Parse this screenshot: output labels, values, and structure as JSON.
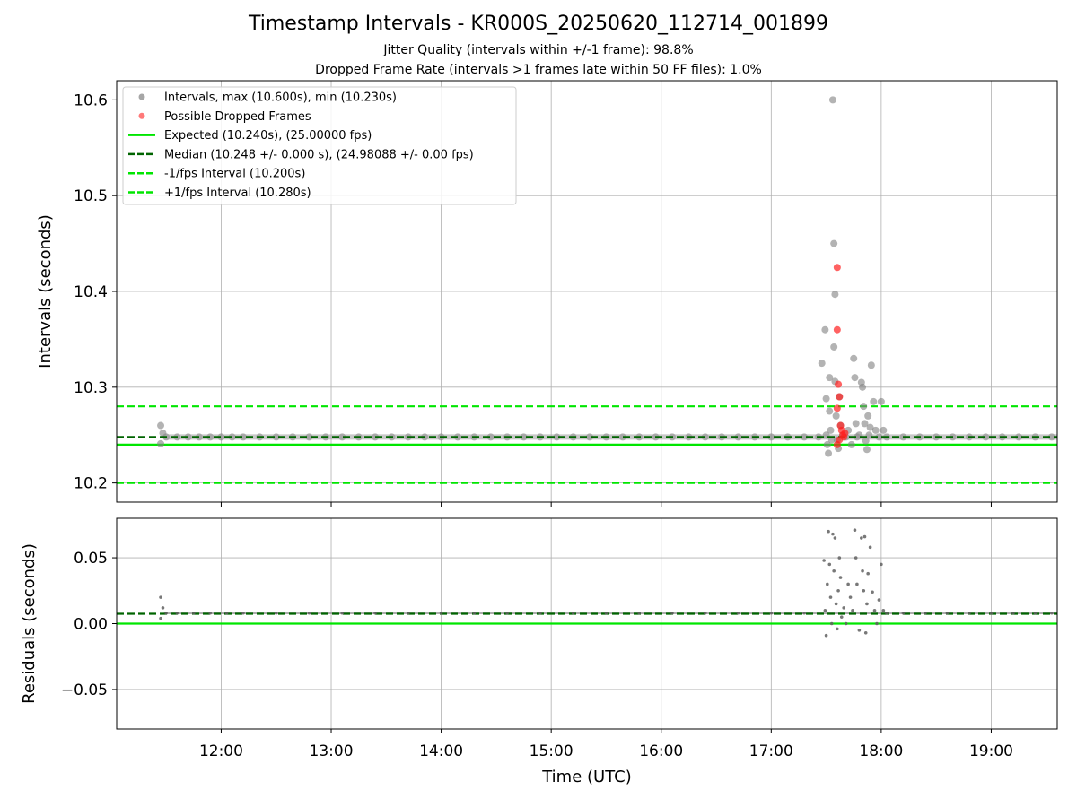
{
  "chart_data": {
    "type": "scatter",
    "title": "Timestamp Intervals - KR000S_20250620_112714_001899",
    "subtitles": [
      "Jitter Quality (intervals within +/-1 frame): 98.8%",
      "Dropped Frame Rate (intervals >1 frames late within 50 FF files): 1.0%"
    ],
    "xlabel": "Time (UTC)",
    "x_ticks": [
      "12:00",
      "13:00",
      "14:00",
      "15:00",
      "16:00",
      "17:00",
      "18:00",
      "19:00"
    ],
    "x_tick_hours": [
      12,
      13,
      14,
      15,
      16,
      17,
      18,
      19
    ],
    "xlim_hours": [
      11.05,
      19.6
    ],
    "grid": true,
    "top_panel": {
      "ylabel": "Intervals (seconds)",
      "ylim": [
        10.18,
        10.62
      ],
      "y_ticks": [
        "10.2",
        "10.3",
        "10.4",
        "10.5",
        "10.6"
      ],
      "y_tick_values": [
        10.2,
        10.3,
        10.4,
        10.5,
        10.6
      ],
      "legend_position": "top-left",
      "legend": [
        {
          "label": "Intervals, max (10.600s), min (10.230s)",
          "kind": "marker",
          "color": "#808080"
        },
        {
          "label": "Possible Dropped Frames",
          "kind": "marker",
          "color": "#ff4040"
        },
        {
          "label": "Expected (10.240s), (25.00000 fps)",
          "kind": "solid",
          "color": "#00e600"
        },
        {
          "label": "Median (10.248 +/- 0.000 s), (24.98088 +/- 0.00 fps)",
          "kind": "dashed",
          "color": "#006400"
        },
        {
          "label": "-1/fps Interval (10.200s)",
          "kind": "dashed",
          "color": "#00e600"
        },
        {
          "label": "+1/fps Interval (10.280s)",
          "kind": "dashed",
          "color": "#00e600"
        }
      ],
      "reference_lines": {
        "expected": 10.24,
        "median": 10.248,
        "minus_fps": 10.2,
        "plus_fps": 10.28
      },
      "intervals": [
        [
          11.45,
          10.26
        ],
        [
          11.45,
          10.241
        ],
        [
          11.47,
          10.252
        ],
        [
          11.5,
          10.248
        ],
        [
          11.6,
          10.248
        ],
        [
          11.7,
          10.248
        ],
        [
          11.8,
          10.248
        ],
        [
          11.9,
          10.248
        ],
        [
          12.0,
          10.248
        ],
        [
          12.1,
          10.248
        ],
        [
          12.2,
          10.248
        ],
        [
          12.35,
          10.248
        ],
        [
          12.5,
          10.248
        ],
        [
          12.65,
          10.248
        ],
        [
          12.8,
          10.248
        ],
        [
          12.95,
          10.248
        ],
        [
          13.1,
          10.248
        ],
        [
          13.25,
          10.248
        ],
        [
          13.4,
          10.248
        ],
        [
          13.55,
          10.248
        ],
        [
          13.7,
          10.248
        ],
        [
          13.85,
          10.248
        ],
        [
          14.0,
          10.248
        ],
        [
          14.15,
          10.248
        ],
        [
          14.3,
          10.248
        ],
        [
          14.45,
          10.248
        ],
        [
          14.6,
          10.248
        ],
        [
          14.75,
          10.248
        ],
        [
          14.9,
          10.248
        ],
        [
          15.05,
          10.248
        ],
        [
          15.2,
          10.248
        ],
        [
          15.35,
          10.248
        ],
        [
          15.5,
          10.248
        ],
        [
          15.65,
          10.248
        ],
        [
          15.8,
          10.248
        ],
        [
          15.95,
          10.248
        ],
        [
          16.1,
          10.248
        ],
        [
          16.25,
          10.248
        ],
        [
          16.4,
          10.248
        ],
        [
          16.55,
          10.248
        ],
        [
          16.7,
          10.248
        ],
        [
          16.85,
          10.248
        ],
        [
          17.0,
          10.248
        ],
        [
          17.15,
          10.248
        ],
        [
          17.3,
          10.248
        ],
        [
          17.43,
          10.248
        ],
        [
          17.46,
          10.325
        ],
        [
          17.49,
          10.36
        ],
        [
          17.5,
          10.288
        ],
        [
          17.5,
          10.25
        ],
        [
          17.51,
          10.24
        ],
        [
          17.52,
          10.231
        ],
        [
          17.53,
          10.31
        ],
        [
          17.53,
          10.275
        ],
        [
          17.54,
          10.255
        ],
        [
          17.55,
          10.245
        ],
        [
          17.56,
          10.6
        ],
        [
          17.57,
          10.45
        ],
        [
          17.57,
          10.342
        ],
        [
          17.58,
          10.397
        ],
        [
          17.58,
          10.306
        ],
        [
          17.59,
          10.27
        ],
        [
          17.6,
          10.245
        ],
        [
          17.61,
          10.236
        ],
        [
          17.62,
          10.29
        ],
        [
          17.63,
          10.26
        ],
        [
          17.65,
          10.25
        ],
        [
          17.68,
          10.248
        ],
        [
          17.7,
          10.255
        ],
        [
          17.73,
          10.24
        ],
        [
          17.75,
          10.33
        ],
        [
          17.76,
          10.31
        ],
        [
          17.77,
          10.262
        ],
        [
          17.78,
          10.248
        ],
        [
          17.8,
          10.25
        ],
        [
          17.82,
          10.305
        ],
        [
          17.83,
          10.3
        ],
        [
          17.84,
          10.28
        ],
        [
          17.85,
          10.262
        ],
        [
          17.86,
          10.244
        ],
        [
          17.87,
          10.235
        ],
        [
          17.88,
          10.27
        ],
        [
          17.89,
          10.25
        ],
        [
          17.9,
          10.258
        ],
        [
          17.91,
          10.323
        ],
        [
          17.93,
          10.285
        ],
        [
          17.95,
          10.255
        ],
        [
          17.98,
          10.248
        ],
        [
          18.0,
          10.285
        ],
        [
          18.02,
          10.255
        ],
        [
          18.05,
          10.248
        ],
        [
          18.2,
          10.248
        ],
        [
          18.35,
          10.248
        ],
        [
          18.5,
          10.248
        ],
        [
          18.65,
          10.248
        ],
        [
          18.8,
          10.248
        ],
        [
          18.95,
          10.248
        ],
        [
          19.1,
          10.248
        ],
        [
          19.25,
          10.248
        ],
        [
          19.4,
          10.248
        ],
        [
          19.55,
          10.248
        ]
      ],
      "dropped": [
        [
          17.6,
          10.425
        ],
        [
          17.6,
          10.36
        ],
        [
          17.61,
          10.303
        ],
        [
          17.62,
          10.29
        ],
        [
          17.6,
          10.278
        ],
        [
          17.63,
          10.26
        ],
        [
          17.64,
          10.255
        ],
        [
          17.65,
          10.25
        ],
        [
          17.62,
          10.245
        ],
        [
          17.6,
          10.24
        ],
        [
          17.66,
          10.248
        ],
        [
          17.67,
          10.252
        ]
      ]
    },
    "bottom_panel": {
      "ylabel": "Residuals (seconds)",
      "ylim": [
        -0.08,
        0.08
      ],
      "y_ticks": [
        "0.05",
        "0.00",
        "−0.05"
      ],
      "y_tick_values": [
        0.05,
        0.0,
        -0.05
      ],
      "reference_lines": {
        "zero": 0.0,
        "median_offset": 0.0075
      },
      "residuals": [
        [
          11.45,
          0.02
        ],
        [
          11.45,
          0.004
        ],
        [
          11.47,
          0.012
        ],
        [
          11.5,
          0.008
        ],
        [
          11.6,
          0.008
        ],
        [
          11.75,
          0.008
        ],
        [
          11.9,
          0.008
        ],
        [
          12.05,
          0.008
        ],
        [
          12.2,
          0.008
        ],
        [
          12.5,
          0.008
        ],
        [
          12.8,
          0.008
        ],
        [
          13.1,
          0.008
        ],
        [
          13.4,
          0.008
        ],
        [
          13.7,
          0.008
        ],
        [
          14.0,
          0.008
        ],
        [
          14.3,
          0.008
        ],
        [
          14.6,
          0.008
        ],
        [
          14.9,
          0.008
        ],
        [
          15.2,
          0.008
        ],
        [
          15.5,
          0.008
        ],
        [
          15.8,
          0.008
        ],
        [
          16.1,
          0.008
        ],
        [
          16.4,
          0.008
        ],
        [
          16.7,
          0.008
        ],
        [
          17.0,
          0.008
        ],
        [
          17.3,
          0.008
        ],
        [
          17.48,
          0.048
        ],
        [
          17.49,
          0.01
        ],
        [
          17.5,
          -0.009
        ],
        [
          17.51,
          0.03
        ],
        [
          17.52,
          0.07
        ],
        [
          17.53,
          0.045
        ],
        [
          17.54,
          0.02
        ],
        [
          17.55,
          0.0
        ],
        [
          17.56,
          0.068
        ],
        [
          17.57,
          0.04
        ],
        [
          17.58,
          0.065
        ],
        [
          17.59,
          0.015
        ],
        [
          17.6,
          -0.004
        ],
        [
          17.61,
          0.025
        ],
        [
          17.62,
          0.05
        ],
        [
          17.63,
          0.035
        ],
        [
          17.64,
          0.005
        ],
        [
          17.66,
          0.012
        ],
        [
          17.68,
          0.0
        ],
        [
          17.7,
          0.03
        ],
        [
          17.72,
          0.02
        ],
        [
          17.74,
          0.01
        ],
        [
          17.76,
          0.071
        ],
        [
          17.77,
          0.05
        ],
        [
          17.78,
          0.03
        ],
        [
          17.8,
          -0.005
        ],
        [
          17.82,
          0.065
        ],
        [
          17.83,
          0.04
        ],
        [
          17.84,
          0.025
        ],
        [
          17.85,
          0.066
        ],
        [
          17.86,
          -0.007
        ],
        [
          17.87,
          0.015
        ],
        [
          17.88,
          0.038
        ],
        [
          17.9,
          0.058
        ],
        [
          17.92,
          0.024
        ],
        [
          17.94,
          0.01
        ],
        [
          17.96,
          0.0
        ],
        [
          17.98,
          0.018
        ],
        [
          18.0,
          0.045
        ],
        [
          18.02,
          0.01
        ],
        [
          18.05,
          0.008
        ],
        [
          18.2,
          0.008
        ],
        [
          18.4,
          0.008
        ],
        [
          18.6,
          0.008
        ],
        [
          18.8,
          0.008
        ],
        [
          19.0,
          0.008
        ],
        [
          19.2,
          0.008
        ],
        [
          19.4,
          0.008
        ],
        [
          19.55,
          0.008
        ]
      ]
    }
  }
}
